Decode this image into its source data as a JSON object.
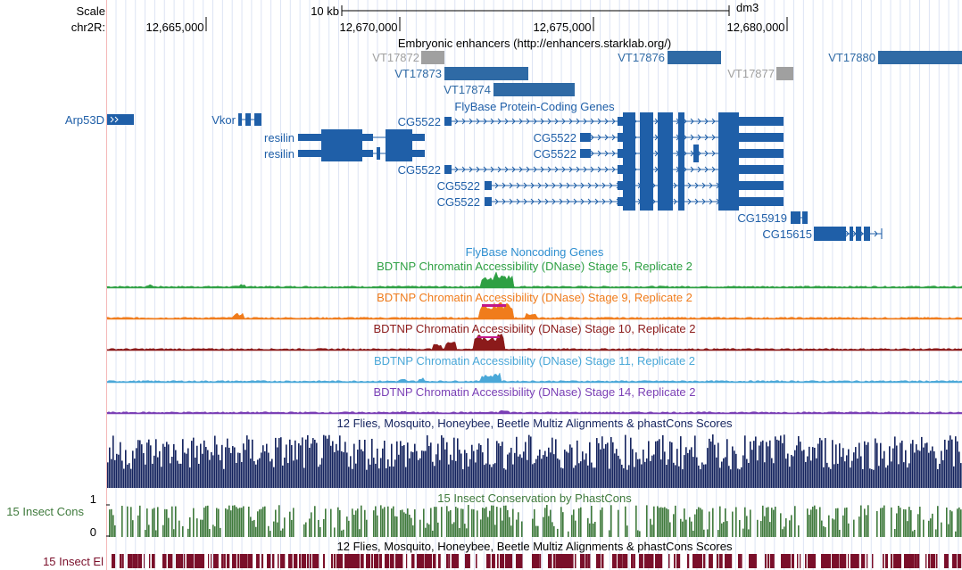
{
  "ruler": {
    "scale_label": "Scale",
    "chrom_label": "chr2R:",
    "scale_bar_label": "10 kb",
    "assembly": "dm3",
    "positions": [
      "12,665,000",
      "12,670,000",
      "12,675,000",
      "12,680,000"
    ]
  },
  "colors": {
    "genes": "#1f5fa8",
    "enhancer_active": "#2f6aa5",
    "enhancer_inactive": "#a0a0a0",
    "stage5": "#2ea043",
    "stage9": "#f07c1c",
    "stage10": "#8b1a1a",
    "stage11": "#4aa8d8",
    "stage14": "#7a3fb5",
    "multiz": "#14235e",
    "phastcons": "#3f7a3c",
    "elements": "#7a0f2a"
  },
  "tracks": {
    "enhancers": {
      "title": "Embryonic enhancers (http://enhancers.starklab.org/)",
      "items": [
        {
          "name": "VT17872",
          "state": "inactive"
        },
        {
          "name": "VT17873",
          "state": "active"
        },
        {
          "name": "VT17874",
          "state": "active"
        },
        {
          "name": "VT17876",
          "state": "active"
        },
        {
          "name": "VT17877",
          "state": "inactive"
        },
        {
          "name": "VT17880",
          "state": "active"
        }
      ]
    },
    "flybase_coding": {
      "title": "FlyBase Protein-Coding Genes",
      "genes": [
        "Arp53D",
        "Vkor",
        "resilin",
        "resilin",
        "CG5522",
        "CG5522",
        "CG5522",
        "CG5522",
        "CG5522",
        "CG5522",
        "CG15919",
        "CG15615"
      ]
    },
    "flybase_noncoding": {
      "title": "FlyBase Noncoding Genes"
    },
    "dnase": [
      {
        "title": "BDTNP Chromatin Accessibility (DNase) Stage 5, Replicate 2"
      },
      {
        "title": "BDTNP Chromatin Accessibility (DNase) Stage 9, Replicate 2"
      },
      {
        "title": "BDTNP Chromatin Accessibility (DNase) Stage 10, Replicate 2"
      },
      {
        "title": "BDTNP Chromatin Accessibility (DNase) Stage 11, Replicate 2"
      },
      {
        "title": "BDTNP Chromatin Accessibility (DNase) Stage 14, Replicate 2"
      }
    ],
    "multiz": {
      "title": "12 Flies, Mosquito, Honeybee, Beetle Multiz Alignments & phastCons Scores"
    },
    "phastcons": {
      "title": "15 Insect Conservation by PhastCons",
      "side_label": "15 Insect Cons",
      "ymax": "1",
      "ymin": "0"
    },
    "elements": {
      "title": "12 Flies, Mosquito, Honeybee, Beetle Multiz Alignments & phastCons Scores",
      "side_label": "15 Insect El"
    }
  }
}
